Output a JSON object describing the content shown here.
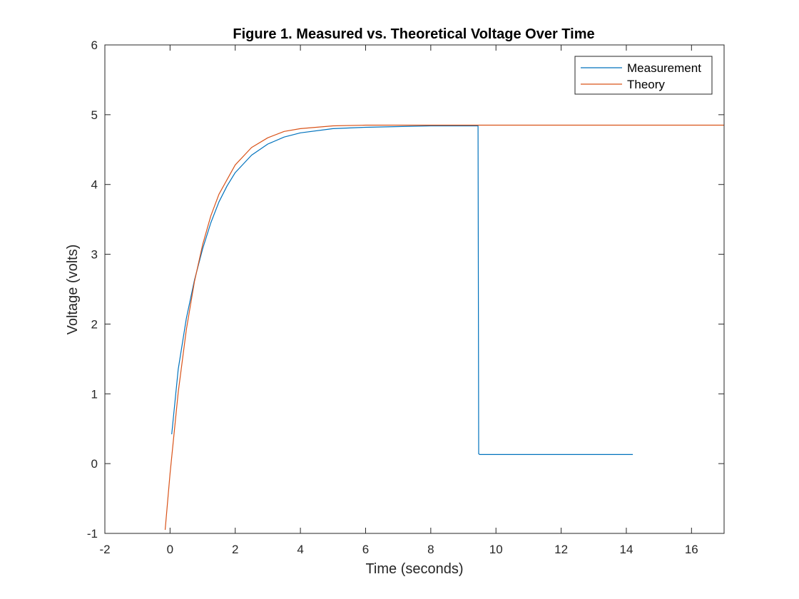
{
  "chart_data": {
    "type": "line",
    "title": "Figure 1. Measured vs. Theoretical Voltage Over Time",
    "xlabel": "Time (seconds)",
    "ylabel": "Voltage (volts)",
    "xlim": [
      -2,
      17
    ],
    "ylim": [
      -1,
      6
    ],
    "xticks": [
      -2,
      0,
      2,
      4,
      6,
      8,
      10,
      12,
      14,
      16
    ],
    "yticks": [
      -1,
      0,
      1,
      2,
      3,
      4,
      5,
      6
    ],
    "xtick_labels": [
      "-2",
      "0",
      "2",
      "4",
      "6",
      "8",
      "10",
      "12",
      "14",
      "16"
    ],
    "ytick_labels": [
      "-1",
      "0",
      "1",
      "2",
      "3",
      "4",
      "5",
      "6"
    ],
    "grid": false,
    "legend_position": "top-right",
    "series": [
      {
        "name": "Measurement",
        "color": "#0072BD",
        "x": [
          0.05,
          0.25,
          0.5,
          0.75,
          1.0,
          1.25,
          1.5,
          1.75,
          2.0,
          2.5,
          3.0,
          3.5,
          4.0,
          5.0,
          6.0,
          7.0,
          8.0,
          9.0,
          9.45,
          9.47,
          9.5,
          10.0,
          11.0,
          12.0,
          13.0,
          14.0,
          14.2
        ],
        "y": [
          0.42,
          1.35,
          2.08,
          2.63,
          3.08,
          3.45,
          3.75,
          3.98,
          4.17,
          4.42,
          4.58,
          4.68,
          4.74,
          4.8,
          4.82,
          4.83,
          4.84,
          4.84,
          4.84,
          0.14,
          0.13,
          0.13,
          0.13,
          0.13,
          0.13,
          0.13,
          0.13
        ]
      },
      {
        "name": "Theory",
        "color": "#D95319",
        "x": [
          -0.15,
          0.0,
          0.25,
          0.5,
          0.75,
          1.0,
          1.25,
          1.5,
          2.0,
          2.5,
          3.0,
          3.5,
          4.0,
          5.0,
          6.0,
          7.0,
          8.0,
          9.0,
          10.0,
          12.0,
          14.0,
          17.0
        ],
        "y": [
          -0.95,
          -0.14,
          1.02,
          1.92,
          2.61,
          3.14,
          3.55,
          3.86,
          4.28,
          4.53,
          4.67,
          4.76,
          4.8,
          4.84,
          4.85,
          4.85,
          4.85,
          4.85,
          4.85,
          4.85,
          4.85,
          4.85
        ]
      }
    ]
  }
}
